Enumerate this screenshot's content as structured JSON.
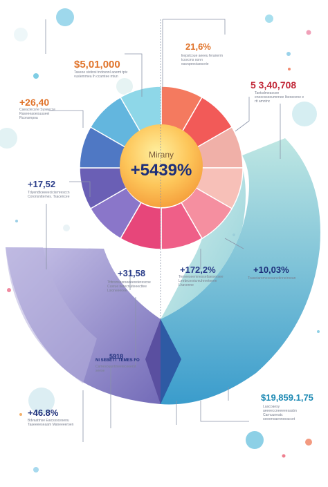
{
  "colors": {
    "pie_slices": [
      "#f47a5f",
      "#f25a58",
      "#f0b0a8",
      "#f7c0b8",
      "#f58fa0",
      "#ef5f88",
      "#e7467a",
      "#8a76c9",
      "#6a5fb5",
      "#4f78c4",
      "#63b6de",
      "#8ed7e8"
    ],
    "center_circle_top": "#fde27a",
    "center_circle_bottom": "#f7a638",
    "left_arc_light": "#c5c0e6",
    "left_arc_dark": "#7c74be",
    "right_arc_light": "#b7e3e1",
    "right_arc_dark": "#3b9fc8",
    "guide_lines": "#8a93a8"
  },
  "center": {
    "title": "Mirany",
    "value": "+5439%"
  },
  "labels": {
    "top_left_value": "$5,01,000",
    "top_left_text": "Taseoe sistinsi tndosnnl aoemt tpiv vuslemmea lh ccamtee mtun",
    "top_right_value": "21,6%",
    "top_right_text": "Eepslcoue aeeeu feranerm tccecms oonn eaxnpeeoiaesorie",
    "left_value": "+26,40",
    "left_text": "Caeaclecsne Syseecce Raseeeaoeouuueei Rconsmpoa",
    "right_value": "5 3,40,708",
    "right_text": "Taetsdmeaocee eneecsseeumnnee Ibeoecene e rtt amntnc",
    "mid_left_value": "+17,52",
    "mid_left_text": "Tdyendtceeeecicisrnresccn Coronsnttemes. Tsacencee",
    "mid_center_value": "+31,58",
    "mid_center_text": "Ttttnsnsesreeeeessterescoe Cusrue netecnuiteeecttee Lsioneeeoee",
    "mid_right_value": "+172,2%",
    "mid_right_text": "Temeeseemnesseltaesevsee Lmrbrcnrsicmuhnretenee Lhavenne",
    "far_right_value": "+10,03%",
    "far_right_text": "Tcasetaromesesanetinneiroean",
    "bottom_center_value": "5918",
    "bottom_center_sub": "NI SEBETT TEMES FO",
    "bottom_center_text": "Camesouuntineeteceeerst seese",
    "bottom_left_value": "+46.8%",
    "bottom_left_text": "Bdvaattnse Eaicssscesenu Taaeeeeseaam Maneeeeroen",
    "bottom_right_value": "$19,859.1,75",
    "bottom_right_text": "Laacoaesy aeeeeccneeeeesasbn Carnuuneatc seesmoaennoeaccet"
  }
}
